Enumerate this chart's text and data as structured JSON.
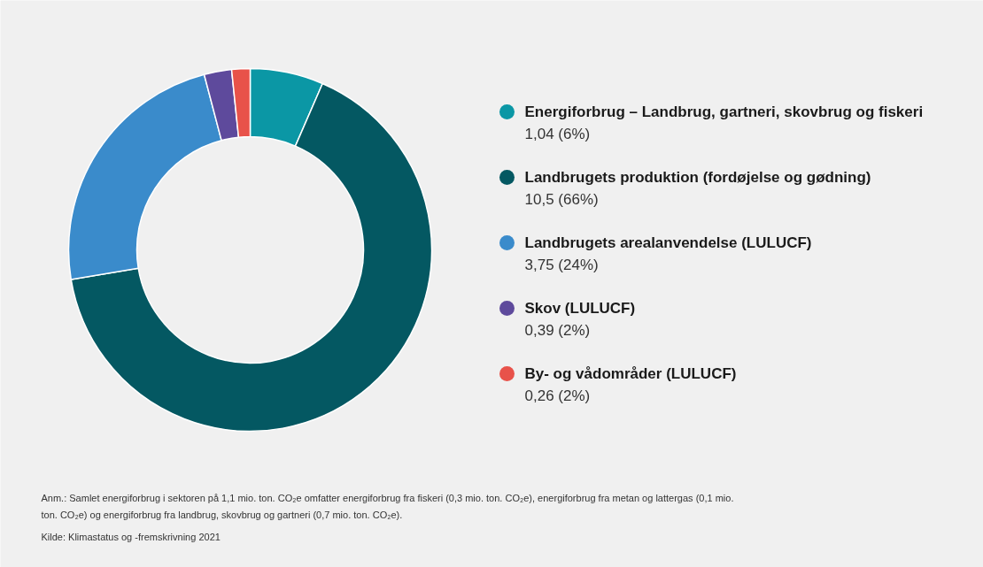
{
  "chart_data": {
    "type": "donut",
    "categories": [
      "Energiforbrug – Landbrug, gartneri, skovbrug og fiskeri",
      "Landbrugets produktion (fordøjelse og gødning)",
      "Landbrugets arealanvendelse (LULUCF)",
      "Skov (LULUCF)",
      "By- og vådområder (LULUCF)"
    ],
    "values": [
      1.04,
      10.5,
      3.75,
      0.39,
      0.26
    ],
    "value_labels": [
      "1,04 (6%)",
      "10,5 (66%)",
      "3,75 (24%)",
      "0,39 (2%)",
      "0,26 (2%)"
    ],
    "colors": [
      "#0b97a5",
      "#045862",
      "#3a8bcb",
      "#5e4a9c",
      "#e8524a"
    ],
    "legend": "right",
    "annotations": [
      "Anm.: Samlet energiforbrug i sektoren på 1,1 mio. ton. CO₂e omfatter energiforbrug fra fiskeri (0,3 mio. ton. CO₂e), energiforbrug fra metan og lattergas (0,1 mio. ton. CO₂e) og energiforbrug fra landbrug, skovbrug og gartneri (0,7 mio. ton. CO₂e).",
      "Kilde: Klimastatus og -fremskrivning 2021"
    ]
  }
}
